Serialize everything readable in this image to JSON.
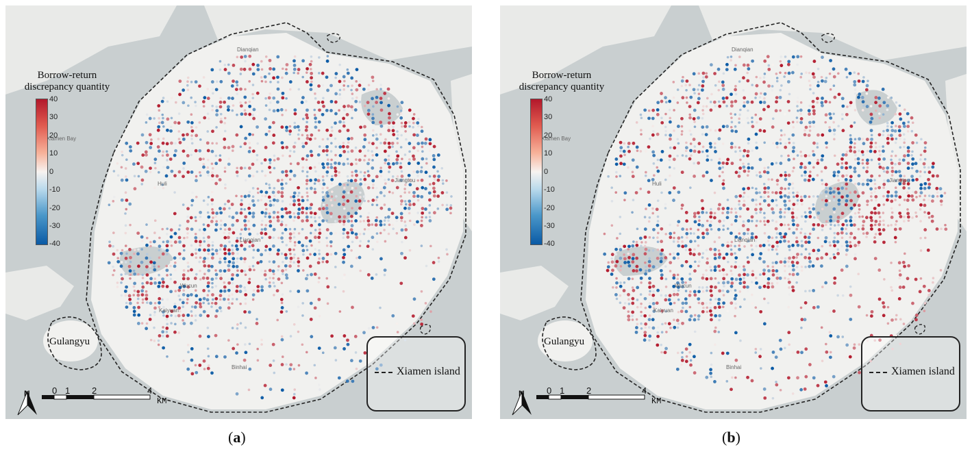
{
  "panels": [
    {
      "id": "a",
      "caption_letter": "a",
      "legend_title_line1": "Borrow-return",
      "legend_title_line2": "discrepancy quantity",
      "colorbar_ticks": [
        "40",
        "30",
        "20",
        "10",
        "0",
        "-10",
        "-20",
        "-30",
        "-40"
      ],
      "colorbar_range": [
        -40,
        40
      ],
      "colormap": [
        "#0a5aa5",
        "#f7f3f0",
        "#b2182b"
      ],
      "outline_label": "Xiamen island",
      "gulangyu_label": "Gulangyu",
      "scale_ticks": [
        "0",
        "1",
        "2",
        "4"
      ],
      "scale_unit": "KM",
      "north_label": "N",
      "place_labels": [
        "Dianqian",
        "Huli",
        "Jiangtou",
        "Lianqian",
        "Wucun",
        "Kaiyuan",
        "Binhai",
        "Xiamen Bay"
      ],
      "pattern_note": "mixed"
    },
    {
      "id": "b",
      "caption_letter": "b",
      "legend_title_line1": "Borrow-return",
      "legend_title_line2": "discrepancy quantity",
      "colorbar_ticks": [
        "40",
        "30",
        "20",
        "10",
        "0",
        "-10",
        "-20",
        "-30",
        "-40"
      ],
      "colorbar_range": [
        -40,
        40
      ],
      "colormap": [
        "#0a5aa5",
        "#f7f3f0",
        "#b2182b"
      ],
      "outline_label": "Xiamen island",
      "gulangyu_label": "Gulangyu",
      "scale_ticks": [
        "0",
        "1",
        "2",
        "4"
      ],
      "scale_unit": "KM",
      "north_label": "N",
      "place_labels": [
        "Dianqian",
        "Huli",
        "Jiangtou",
        "Lianqian",
        "Wucun",
        "Kaiyuan",
        "Binhai",
        "Xiamen Bay"
      ],
      "pattern_note": "mixed"
    }
  ],
  "colors": {
    "water": "#c9cfd0",
    "land": "#f1f1ef",
    "positive": "#c8232c",
    "negative": "#1f6fb4"
  }
}
